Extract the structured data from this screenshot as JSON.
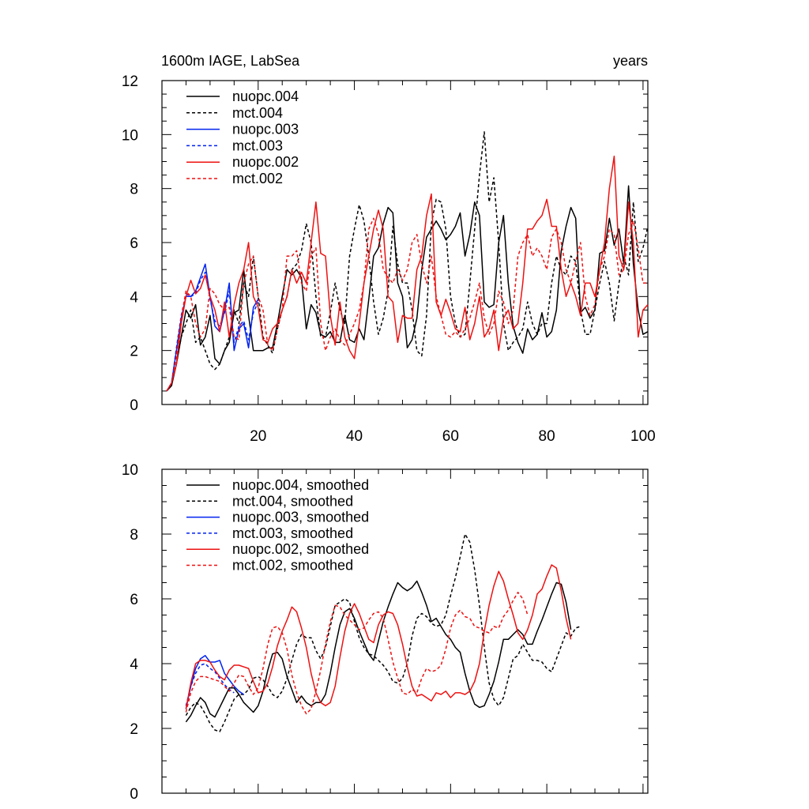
{
  "chart_data": [
    {
      "type": "line",
      "title": "1600m IAGE, LabSea",
      "title_right": "years",
      "xlim": [
        0,
        101
      ],
      "ylim": [
        0,
        12
      ],
      "x_ticks": [
        20,
        40,
        60,
        80,
        100
      ],
      "y_ticks": [
        0,
        2,
        4,
        6,
        8,
        10,
        12
      ],
      "legend": "top-left",
      "series": [
        {
          "name": "nuopc.004",
          "color": "#000000",
          "dash": false,
          "x_start": 1,
          "values": [
            0.5,
            0.7,
            1.5,
            2.5,
            3.5,
            3.2,
            3.7,
            2.2,
            2.5,
            3.3,
            1.7,
            1.5,
            2.0,
            2.3,
            3.4,
            3.5,
            5.0,
            3.3,
            2.0,
            2.0,
            2.0,
            2.1,
            2.1,
            3.0,
            4.0,
            5.0,
            4.8,
            5.0,
            4.7,
            2.8,
            3.7,
            3.4,
            2.6,
            2.5,
            2.7,
            2.3,
            2.3,
            3.3,
            2.4,
            2.3,
            2.8,
            2.4,
            3.9,
            5.5,
            5.8,
            6.7,
            7.3,
            7.1,
            4.5,
            4.0,
            2.1,
            2.4,
            3.2,
            5.0,
            6.2,
            6.5,
            6.8,
            6.5,
            6.1,
            6.3,
            6.6,
            7.1,
            5.5,
            6.3,
            7.5,
            7.0,
            3.8,
            3.6,
            3.7,
            6.0,
            7.0,
            4.5,
            2.9,
            2.3,
            1.9,
            2.8,
            2.4,
            2.6,
            3.4,
            2.5,
            2.7,
            3.5,
            5.7,
            6.6,
            7.3,
            6.9,
            3.4,
            3.6,
            3.2,
            3.5,
            5.6,
            5.7,
            6.9,
            5.9,
            6.5,
            5.2,
            8.1,
            5.2,
            3.5,
            2.6,
            2.7
          ]
        },
        {
          "name": "mct.004",
          "color": "#000000",
          "dash": true,
          "x_start": 1,
          "values": [
            0.5,
            0.8,
            1.5,
            2.5,
            3.0,
            3.5,
            2.3,
            2.5,
            2.0,
            1.5,
            1.3,
            1.5,
            2.0,
            2.5,
            3.5,
            3.0,
            4.5,
            4.0,
            5.5,
            4.0,
            2.5,
            2.2,
            1.9,
            2.8,
            3.5,
            4.0,
            5.0,
            5.2,
            5.7,
            6.7,
            6.0,
            4.0,
            2.5,
            2.5,
            3.4,
            4.5,
            3.5,
            3.0,
            5.5,
            6.5,
            7.4,
            6.8,
            5.5,
            3.8,
            2.6,
            3.2,
            4.2,
            6.6,
            5.2,
            4.5,
            4.5,
            3.5,
            2.0,
            1.8,
            3.3,
            6.7,
            7.6,
            7.5,
            6.5,
            4.0,
            3.0,
            2.5,
            2.6,
            4.5,
            6.5,
            8.5,
            10.1,
            7.5,
            8.4,
            6.0,
            3.0,
            2.0,
            2.3,
            2.5,
            2.8,
            3.8,
            3.0,
            2.6,
            3.0,
            3.0,
            4.5,
            5.5,
            5.0,
            4.8,
            5.5,
            5.3,
            3.5,
            2.6,
            2.6,
            3.5,
            4.5,
            5.3,
            4.5,
            3.1,
            4.5,
            5.5,
            4.8,
            7.5,
            5.3,
            5.8,
            6.6
          ]
        },
        {
          "name": "nuopc.003",
          "color": "#0022ee",
          "dash": false,
          "x_start": 1,
          "values": [
            0.5,
            0.8,
            2.0,
            3.2,
            4.0,
            4.0,
            4.2,
            4.7,
            5.2,
            4.0,
            2.9,
            2.7,
            3.5,
            4.5,
            2.0,
            2.8,
            3.0,
            2.1,
            3.6,
            3.9
          ]
        },
        {
          "name": "mct.003",
          "color": "#0022ee",
          "dash": true,
          "x_start": 1,
          "values": [
            0.5,
            0.8,
            2.1,
            3.3,
            4.1,
            4.0,
            4.1,
            4.6,
            4.9,
            3.9,
            3.1,
            2.9,
            3.4,
            4.2,
            2.3,
            2.9,
            3.1,
            2.4,
            3.4,
            3.8
          ]
        },
        {
          "name": "nuopc.002",
          "color": "#ee1111",
          "dash": false,
          "x_start": 1,
          "values": [
            0.5,
            0.8,
            1.5,
            3.0,
            4.0,
            4.6,
            4.1,
            4.3,
            4.8,
            4.0,
            3.5,
            2.7,
            3.8,
            2.5,
            3.7,
            4.5,
            5.0,
            6.0,
            4.0,
            3.6,
            2.4,
            2.3,
            2.8,
            3.0,
            3.5,
            4.0,
            5.0,
            4.5,
            4.9,
            4.5,
            6.0,
            7.5,
            5.6,
            5.5,
            3.3,
            2.2,
            3.8,
            2.5,
            2.0,
            1.7,
            3.0,
            4.5,
            5.5,
            6.5,
            7.2,
            6.5,
            4.0,
            3.8,
            2.3,
            3.3,
            3.2,
            3.2,
            5.0,
            5.5,
            7.0,
            7.8,
            3.8,
            3.3,
            3.9,
            3.4,
            2.8,
            2.7,
            3.6,
            2.4,
            3.0,
            4.0,
            2.5,
            2.8,
            3.5,
            2.0,
            3.2,
            3.5,
            2.8,
            3.0,
            4.5,
            6.5,
            6.5,
            6.8,
            7.0,
            7.6,
            6.6,
            6.6,
            5.0,
            4.0,
            4.5,
            4.0,
            3.3,
            4.5,
            4.5,
            4.0,
            5.0,
            6.0,
            8.0,
            9.2,
            5.5,
            5.0,
            7.5,
            6.0,
            2.5,
            3.5,
            3.7
          ]
        },
        {
          "name": "mct.002",
          "color": "#ee1111",
          "dash": true,
          "x_start": 1,
          "values": [
            0.5,
            0.8,
            1.8,
            3.2,
            4.2,
            4.0,
            3.0,
            2.5,
            2.8,
            4.3,
            4.1,
            3.7,
            3.5,
            3.6,
            2.5,
            2.4,
            4.5,
            5.2,
            5.5,
            4.0,
            3.5,
            2.2,
            2.0,
            2.8,
            3.5,
            5.5,
            5.5,
            5.7,
            4.5,
            4.2,
            5.5,
            5.8,
            3.0,
            2.0,
            2.5,
            2.8,
            2.4,
            2.2,
            2.6,
            3.0,
            3.5,
            4.5,
            6.5,
            6.9,
            6.3,
            5.0,
            4.7,
            4.5,
            5.0,
            4.6,
            5.0,
            6.0,
            6.3,
            5.2,
            4.5,
            5.5,
            4.0,
            3.3,
            2.6,
            2.5,
            2.7,
            2.5,
            2.8,
            3.2,
            3.8,
            4.5,
            3.2,
            2.6,
            3.0,
            4.2,
            3.8,
            3.0,
            3.5,
            5.5,
            6.0,
            6.3,
            5.5,
            5.8,
            5.5,
            5.0,
            6.2,
            6.5,
            6.0,
            5.0,
            4.5,
            5.3,
            6.0,
            4.0,
            3.3,
            3.7,
            5.0,
            5.5,
            6.5,
            6.3,
            4.8,
            5.0,
            6.3,
            6.8,
            5.8,
            4.5,
            4.5
          ]
        }
      ]
    },
    {
      "type": "line",
      "title": "",
      "xlim": [
        0,
        101
      ],
      "ylim": [
        0,
        10
      ],
      "y_ticks": [
        0,
        2,
        4,
        6,
        8,
        10
      ],
      "legend": "top-left",
      "series": [
        {
          "name": "nuopc.004, smoothed",
          "color": "#000000",
          "dash": false,
          "x_start": 5,
          "values": [
            2.2,
            2.4,
            2.7,
            2.95,
            2.8,
            2.45,
            2.35,
            2.65,
            2.95,
            3.25,
            3.25,
            3.05,
            2.8,
            2.65,
            2.5,
            2.7,
            3.15,
            3.8,
            4.3,
            4.35,
            4.15,
            3.6,
            3.2,
            2.8,
            3.0,
            2.8,
            2.7,
            2.8,
            2.8,
            3.05,
            3.7,
            4.5,
            5.2,
            5.6,
            5.7,
            5.4,
            5.0,
            4.65,
            4.3,
            4.1,
            4.7,
            5.3,
            5.75,
            6.15,
            6.5,
            6.35,
            6.25,
            6.35,
            6.55,
            6.2,
            5.8,
            5.3,
            5.4,
            5.15,
            4.9,
            4.75,
            4.5,
            4.35,
            3.7,
            3.15,
            2.75,
            2.65,
            2.7,
            3.05,
            3.45,
            4.05,
            4.75,
            4.75,
            4.9,
            5.05,
            4.9,
            4.6,
            4.6,
            5.0,
            5.35,
            5.75,
            6.15,
            6.5,
            6.45,
            5.9,
            5.05
          ]
        },
        {
          "name": "mct.004, smoothed",
          "color": "#000000",
          "dash": true,
          "x_start": 5,
          "values": [
            2.4,
            2.65,
            2.8,
            2.7,
            2.45,
            2.15,
            1.95,
            1.9,
            2.2,
            2.55,
            2.9,
            3.05,
            3.05,
            3.2,
            3.55,
            3.6,
            3.5,
            3.3,
            3.05,
            2.95,
            3.15,
            3.55,
            4.1,
            4.6,
            4.9,
            4.8,
            4.8,
            4.4,
            4.15,
            4.5,
            5.15,
            5.8,
            5.9,
            6.0,
            5.9,
            5.3,
            4.8,
            4.5,
            4.3,
            4.25,
            4.1,
            3.95,
            3.75,
            3.45,
            3.4,
            3.55,
            4.0,
            4.85,
            5.4,
            5.55,
            5.45,
            5.25,
            5.15,
            5.2,
            5.5,
            6.1,
            6.65,
            7.3,
            8.0,
            7.75,
            6.9,
            5.8,
            4.5,
            3.4,
            2.9,
            2.7,
            2.95,
            3.55,
            4.15,
            4.25,
            4.6,
            4.35,
            4.1,
            4.1,
            4.05,
            3.85,
            3.75,
            4.15,
            4.55,
            4.95,
            4.85,
            5.1,
            5.15
          ]
        },
        {
          "name": "nuopc.003, smoothed",
          "color": "#0022ee",
          "dash": false,
          "x_start": 5,
          "values": [
            2.6,
            3.3,
            3.85,
            4.15,
            4.25,
            4.05,
            4.05,
            4.1,
            3.7,
            3.5,
            3.3,
            3.15,
            3.05
          ]
        },
        {
          "name": "mct.003, smoothed",
          "color": "#0022ee",
          "dash": true,
          "x_start": 5,
          "values": [
            2.7,
            3.3,
            3.7,
            3.95,
            4.0,
            3.85,
            3.75,
            3.55,
            3.35,
            3.2,
            3.1
          ]
        },
        {
          "name": "nuopc.002, smoothed",
          "color": "#ee1111",
          "dash": false,
          "x_start": 5,
          "values": [
            2.6,
            3.4,
            4.0,
            4.1,
            4.1,
            4.05,
            3.8,
            3.6,
            3.5,
            3.8,
            3.95,
            3.95,
            3.9,
            3.85,
            3.45,
            3.1,
            3.15,
            3.4,
            3.9,
            4.55,
            5.0,
            5.35,
            5.75,
            5.6,
            5.1,
            4.5,
            3.7,
            3.1,
            2.8,
            2.7,
            2.8,
            3.3,
            4.2,
            5.0,
            5.55,
            5.85,
            5.55,
            5.15,
            4.75,
            4.65,
            5.2,
            5.5,
            5.6,
            5.55,
            5.2,
            4.6,
            3.9,
            3.3,
            3.0,
            3.05,
            2.95,
            2.85,
            3.1,
            3.05,
            3.15,
            2.95,
            3.1,
            3.1,
            3.05,
            3.15,
            3.45,
            4.0,
            5.0,
            5.8,
            6.4,
            6.85,
            6.55,
            6.0,
            5.5,
            4.95,
            4.75,
            5.05,
            5.5,
            6.15,
            6.3,
            6.7,
            7.05,
            6.95,
            6.25,
            5.4,
            4.75
          ]
        },
        {
          "name": "mct.002, smoothed",
          "color": "#ee1111",
          "dash": true,
          "x_start": 5,
          "values": [
            2.5,
            3.1,
            3.45,
            3.6,
            3.6,
            3.55,
            3.5,
            3.45,
            3.3,
            3.15,
            3.4,
            3.65,
            3.6,
            3.3,
            3.05,
            3.25,
            3.85,
            4.6,
            5.1,
            5.15,
            4.95,
            4.45,
            3.65,
            3.1,
            2.7,
            2.45,
            2.6,
            3.15,
            3.8,
            4.6,
            5.3,
            5.8,
            5.75,
            5.5,
            5.35,
            5.2,
            5.05,
            5.1,
            5.35,
            5.55,
            5.6,
            5.4,
            4.75,
            4.05,
            3.55,
            3.1,
            3.05,
            3.2,
            3.1,
            3.55,
            3.85,
            3.75,
            3.8,
            3.95,
            4.45,
            5.1,
            5.5,
            5.65,
            5.45,
            5.4,
            5.15,
            5.1,
            5.0,
            4.95,
            5.15,
            5.1,
            5.45,
            5.65,
            5.95,
            6.2,
            6.0,
            5.5
          ]
        }
      ]
    }
  ]
}
